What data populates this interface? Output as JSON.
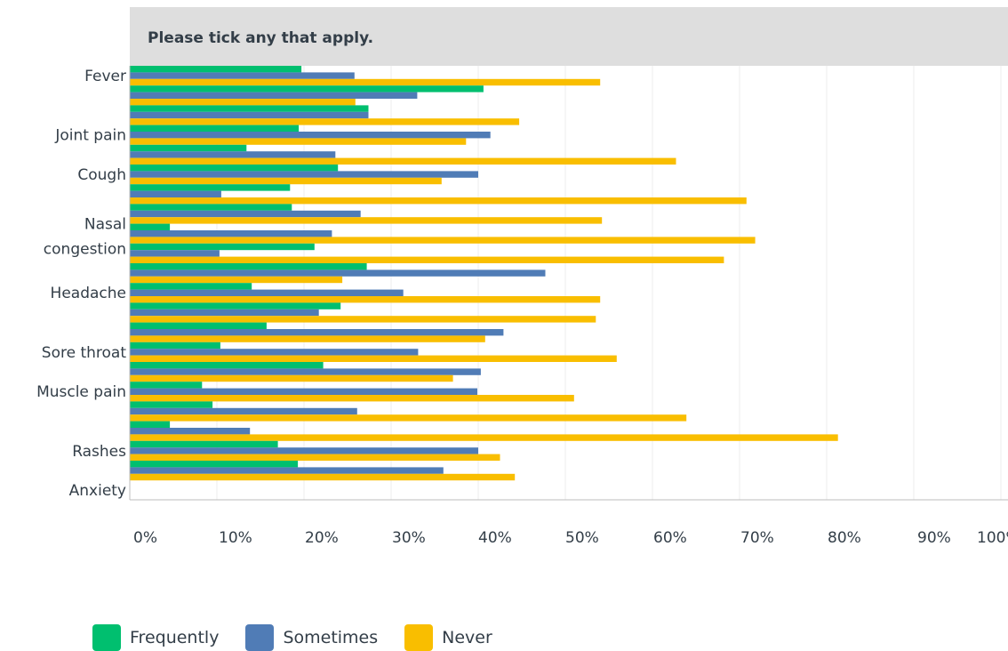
{
  "chart_data": {
    "type": "bar",
    "orientation": "horizontal",
    "title": "Please tick any that apply.",
    "x_ticks": [
      "0%",
      "10%",
      "20%",
      "30%",
      "40%",
      "50%",
      "60%",
      "70%",
      "80%",
      "90%",
      "100%"
    ],
    "xlim": [
      0,
      100
    ],
    "grid": true,
    "legend_position": "bottom-left",
    "categories": [
      "Fever",
      "",
      "",
      "Joint pain",
      "",
      "Cough",
      "",
      "",
      "Nasal congestion",
      "",
      "",
      "Headache",
      "",
      "",
      "Sore throat",
      "",
      "Muscle pain",
      "",
      "",
      "Rashes",
      "",
      "Anxiety"
    ],
    "category_labels": [
      {
        "index": 0,
        "lines": [
          "Fever"
        ]
      },
      {
        "index": 3,
        "lines": [
          "Joint pain"
        ]
      },
      {
        "index": 5,
        "lines": [
          "Cough"
        ]
      },
      {
        "index": 8,
        "lines": [
          "Nasal",
          "congestion"
        ]
      },
      {
        "index": 11,
        "lines": [
          "Headache"
        ]
      },
      {
        "index": 14,
        "lines": [
          "Sore throat"
        ]
      },
      {
        "index": 16,
        "lines": [
          "Muscle pain"
        ]
      },
      {
        "index": 19,
        "lines": [
          "Rashes"
        ]
      },
      {
        "index": 21,
        "lines": [
          "Anxiety"
        ]
      }
    ],
    "series": [
      {
        "name": "Frequently",
        "color": "#00bf6f",
        "values": [
          19.7,
          40.6,
          27.4,
          19.4,
          13.4,
          23.9,
          18.4,
          18.6,
          4.6,
          21.2,
          27.2,
          14.0,
          24.2,
          15.7,
          10.4,
          22.2,
          8.3,
          9.5,
          4.6,
          17.0,
          19.3,
          0
        ]
      },
      {
        "name": "Sometimes",
        "color": "#507cb6",
        "values": [
          25.8,
          33.0,
          27.4,
          41.4,
          23.6,
          40.0,
          10.5,
          26.5,
          23.2,
          10.3,
          47.7,
          31.4,
          21.7,
          42.9,
          33.1,
          40.3,
          39.9,
          26.1,
          13.8,
          40.0,
          36.0,
          0
        ]
      },
      {
        "name": "Never",
        "color": "#f9be00",
        "values": [
          54.0,
          25.9,
          44.7,
          38.6,
          62.7,
          35.8,
          70.8,
          54.2,
          71.8,
          68.2,
          24.4,
          54.0,
          53.5,
          40.8,
          55.9,
          37.1,
          51.0,
          63.9,
          81.3,
          42.5,
          44.2,
          0
        ]
      }
    ]
  }
}
